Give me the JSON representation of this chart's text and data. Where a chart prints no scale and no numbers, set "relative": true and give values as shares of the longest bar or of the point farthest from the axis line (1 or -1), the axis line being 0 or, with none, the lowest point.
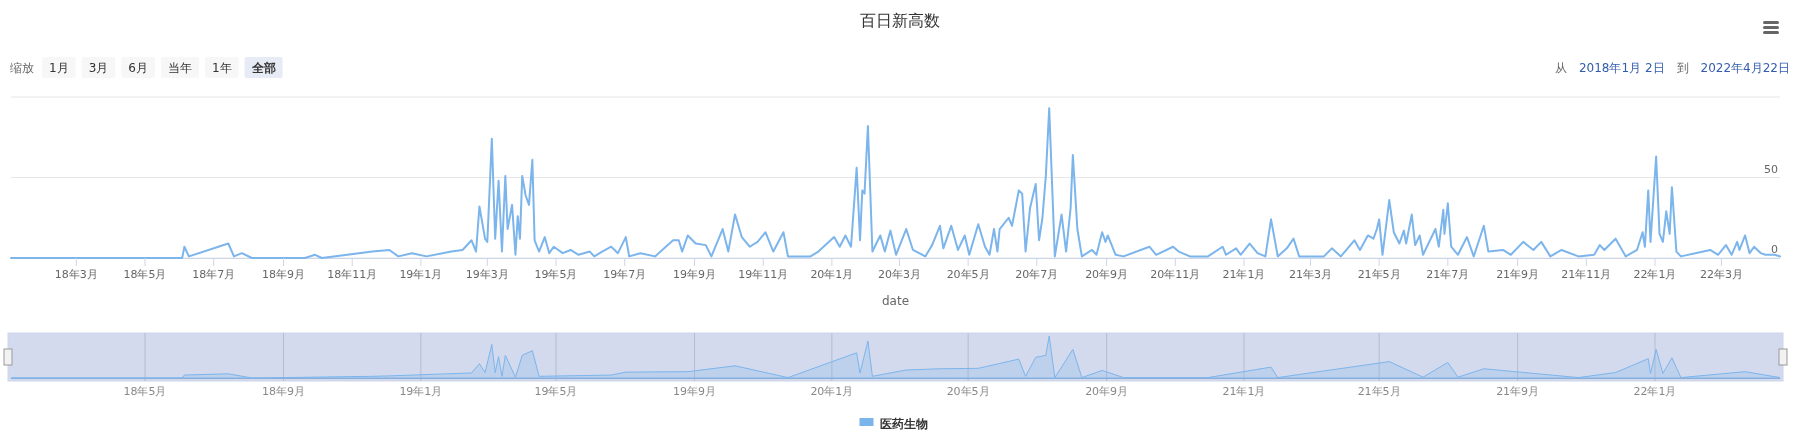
{
  "chart_data": [
    {
      "type": "line",
      "title": "百日新高数",
      "xlabel": "date",
      "annotations": [
        "缩放",
        "1月",
        "3月",
        "6月",
        "当年",
        "1年",
        "全部",
        "从",
        "2018年1月 2日",
        "到",
        "2022年4月22日"
      ],
      "xlim": [
        "2018-01-02",
        "2022-04-22"
      ],
      "xticks": [
        {
          "value": "2018-03-01",
          "label": "18年3月"
        },
        {
          "value": "2018-05-01",
          "label": "18年5月"
        },
        {
          "value": "2018-07-01",
          "label": "18年7月"
        },
        {
          "value": "2018-09-01",
          "label": "18年9月"
        },
        {
          "value": "2018-11-01",
          "label": "18年11月"
        },
        {
          "value": "2019-01-01",
          "label": "19年1月"
        },
        {
          "value": "2019-03-01",
          "label": "19年3月"
        },
        {
          "value": "2019-05-01",
          "label": "19年5月"
        },
        {
          "value": "2019-07-01",
          "label": "19年7月"
        },
        {
          "value": "2019-09-01",
          "label": "19年9月"
        },
        {
          "value": "2019-11-01",
          "label": "19年11月"
        },
        {
          "value": "2020-01-01",
          "label": "20年1月"
        },
        {
          "value": "2020-03-01",
          "label": "20年3月"
        },
        {
          "value": "2020-05-01",
          "label": "20年5月"
        },
        {
          "value": "2020-07-01",
          "label": "20年7月"
        },
        {
          "value": "2020-09-01",
          "label": "20年9月"
        },
        {
          "value": "2020-11-01",
          "label": "20年11月"
        },
        {
          "value": "2021-01-01",
          "label": "21年1月"
        },
        {
          "value": "2021-03-01",
          "label": "21年3月"
        },
        {
          "value": "2021-05-01",
          "label": "21年5月"
        },
        {
          "value": "2021-07-01",
          "label": "21年7月"
        },
        {
          "value": "2021-09-01",
          "label": "21年9月"
        },
        {
          "value": "2021-11-01",
          "label": "21年11月"
        },
        {
          "value": "2022-01-01",
          "label": "22年1月"
        },
        {
          "value": "2022-03-01",
          "label": "22年3月"
        }
      ],
      "ylim": [
        0,
        100
      ],
      "yticks": [
        0,
        50,
        {
          "value": 100,
          "label": null
        }
      ],
      "grid": "y",
      "legend": "bottom",
      "series": [
        {
          "name": "医药生物",
          "color": "#7cb5ec",
          "x": [
            "2018-01-02",
            "2018-06-03",
            "2018-06-05",
            "2018-06-09",
            "2018-07-14",
            "2018-07-19",
            "2018-07-26",
            "2018-08-04",
            "2018-09-20",
            "2018-09-29",
            "2018-10-05",
            "2018-11-19",
            "2018-12-04",
            "2018-12-12",
            "2018-12-24",
            "2019-01-06",
            "2019-01-28",
            "2019-02-07",
            "2019-02-15",
            "2019-02-19",
            "2019-02-22",
            "2019-02-27",
            "2019-03-01",
            "2019-03-05",
            "2019-03-08",
            "2019-03-11",
            "2019-03-14",
            "2019-03-17",
            "2019-03-19",
            "2019-03-23",
            "2019-03-26",
            "2019-03-28",
            "2019-03-30",
            "2019-04-01",
            "2019-04-04",
            "2019-04-07",
            "2019-04-10",
            "2019-04-12",
            "2019-04-16",
            "2019-04-21",
            "2019-04-25",
            "2019-04-29",
            "2019-05-07",
            "2019-05-14",
            "2019-05-21",
            "2019-05-31",
            "2019-06-04",
            "2019-06-11",
            "2019-06-19",
            "2019-06-25",
            "2019-07-02",
            "2019-07-05",
            "2019-07-15",
            "2019-07-28",
            "2019-08-13",
            "2019-08-18",
            "2019-08-21",
            "2019-08-26",
            "2019-09-02",
            "2019-09-11",
            "2019-09-16",
            "2019-09-26",
            "2019-10-01",
            "2019-10-07",
            "2019-10-13",
            "2019-10-20",
            "2019-10-27",
            "2019-11-03",
            "2019-11-10",
            "2019-11-19",
            "2019-11-23",
            "2019-12-13",
            "2019-12-20",
            "2020-01-03",
            "2020-01-08",
            "2020-01-13",
            "2020-01-18",
            "2020-01-23",
            "2020-01-26",
            "2020-01-28",
            "2020-01-30",
            "2020-02-02",
            "2020-02-06",
            "2020-02-13",
            "2020-02-17",
            "2020-02-22",
            "2020-02-27",
            "2020-03-07",
            "2020-03-13",
            "2020-03-24",
            "2020-03-30",
            "2020-04-06",
            "2020-04-09",
            "2020-04-16",
            "2020-04-22",
            "2020-04-28",
            "2020-05-02",
            "2020-05-10",
            "2020-05-16",
            "2020-05-20",
            "2020-05-24",
            "2020-05-27",
            "2020-05-29",
            "2020-06-06",
            "2020-06-09",
            "2020-06-15",
            "2020-06-18",
            "2020-06-21",
            "2020-06-25",
            "2020-06-30",
            "2020-07-03",
            "2020-07-06",
            "2020-07-09",
            "2020-07-12",
            "2020-07-17",
            "2020-07-23",
            "2020-07-27",
            "2020-07-31",
            "2020-08-02",
            "2020-08-06",
            "2020-08-10",
            "2020-08-19",
            "2020-08-23",
            "2020-08-28",
            "2020-08-31",
            "2020-09-02",
            "2020-09-09",
            "2020-09-16",
            "2020-10-09",
            "2020-10-15",
            "2020-10-30",
            "2020-11-04",
            "2020-11-14",
            "2020-11-30",
            "2020-12-13",
            "2020-12-16",
            "2020-12-25",
            "2020-12-29",
            "2021-01-06",
            "2021-01-13",
            "2021-01-20",
            "2021-01-25",
            "2021-01-31",
            "2021-02-08",
            "2021-02-14",
            "2021-02-19",
            "2021-03-13",
            "2021-03-20",
            "2021-03-28",
            "2021-04-09",
            "2021-04-14",
            "2021-04-21",
            "2021-04-26",
            "2021-04-29",
            "2021-05-01",
            "2021-05-04",
            "2021-05-10",
            "2021-05-14",
            "2021-05-19",
            "2021-05-23",
            "2021-05-25",
            "2021-05-30",
            "2021-06-02",
            "2021-06-06",
            "2021-06-09",
            "2021-06-20",
            "2021-06-23",
            "2021-06-27",
            "2021-06-28",
            "2021-07-01",
            "2021-07-04",
            "2021-07-10",
            "2021-07-18",
            "2021-07-24",
            "2021-08-02",
            "2021-08-06",
            "2021-08-19",
            "2021-08-26",
            "2021-09-06",
            "2021-09-15",
            "2021-09-22",
            "2021-09-30",
            "2021-10-10",
            "2021-10-25",
            "2021-11-08",
            "2021-11-13",
            "2021-11-17",
            "2021-11-27",
            "2021-12-06",
            "2021-12-16",
            "2021-12-21",
            "2021-12-23",
            "2021-12-26",
            "2021-12-28",
            "2022-01-02",
            "2022-01-05",
            "2022-01-08",
            "2022-01-11",
            "2022-01-14",
            "2022-01-16",
            "2022-01-20",
            "2022-01-24",
            "2022-02-19",
            "2022-02-26",
            "2022-03-05",
            "2022-03-10",
            "2022-03-15",
            "2022-03-17",
            "2022-03-22",
            "2022-03-26",
            "2022-03-30",
            "2022-04-05",
            "2022-04-09",
            "2022-04-17",
            "2022-04-22"
          ],
          "values": [
            0,
            0,
            7,
            1,
            9,
            1,
            3,
            0,
            0,
            2,
            0,
            4,
            5,
            1,
            3,
            1,
            4,
            5,
            11,
            4,
            32,
            12,
            10,
            74,
            12,
            48,
            4,
            51,
            18,
            33,
            2,
            26,
            12,
            51,
            39,
            33,
            61,
            11,
            4,
            13,
            3,
            7,
            3,
            5,
            2,
            4,
            1,
            4,
            7,
            3,
            13,
            1,
            3,
            1,
            11,
            11,
            4,
            14,
            9,
            8,
            1,
            18,
            4,
            27,
            13,
            7,
            10,
            16,
            4,
            16,
            1,
            1,
            4,
            13,
            7,
            14,
            7,
            56,
            11,
            42,
            40,
            82,
            4,
            14,
            4,
            17,
            2,
            18,
            5,
            1,
            8,
            20,
            6,
            20,
            5,
            14,
            2,
            21,
            7,
            2,
            18,
            4,
            18,
            25,
            20,
            42,
            40,
            4,
            31,
            46,
            11,
            25,
            51,
            93,
            1,
            27,
            4,
            31,
            64,
            18,
            1,
            5,
            2,
            16,
            10,
            14,
            2,
            1,
            7,
            2,
            7,
            4,
            1,
            1,
            7,
            2,
            6,
            2,
            9,
            3,
            1,
            24,
            1,
            6,
            12,
            1,
            1,
            6,
            1,
            11,
            5,
            14,
            12,
            18,
            24,
            2,
            36,
            16,
            9,
            17,
            9,
            27,
            8,
            14,
            2,
            18,
            7,
            30,
            15,
            34,
            7,
            2,
            13,
            1,
            20,
            4,
            5,
            2,
            10,
            5,
            10,
            1,
            5,
            1,
            2,
            8,
            5,
            12,
            1,
            5,
            16,
            7,
            42,
            10,
            63,
            15,
            10,
            29,
            15,
            44,
            4,
            1,
            5,
            2,
            8,
            2,
            10,
            5,
            14,
            3,
            7,
            3,
            2,
            2,
            1
          ]
        }
      ]
    },
    {
      "type": "area",
      "relative": true,
      "grid": "x",
      "tick_labels": "x",
      "xlim": [
        "2018-01-02",
        "2022-04-22"
      ],
      "xticks": [
        {
          "value": "2018-05-01",
          "label": "18年5月"
        },
        {
          "value": "2018-09-01",
          "label": "18年9月"
        },
        {
          "value": "2019-01-01",
          "label": "19年1月"
        },
        {
          "value": "2019-05-01",
          "label": "19年5月"
        },
        {
          "value": "2019-09-01",
          "label": "19年9月"
        },
        {
          "value": "2020-01-01",
          "label": "20年1月"
        },
        {
          "value": "2020-05-01",
          "label": "20年5月"
        },
        {
          "value": "2020-09-01",
          "label": "20年9月"
        },
        {
          "value": "2021-01-01",
          "label": "21年1月"
        },
        {
          "value": "2021-05-01",
          "label": "21年5月"
        },
        {
          "value": "2021-09-01",
          "label": "21年9月"
        },
        {
          "value": "2022-01-01",
          "label": "22年1月"
        }
      ],
      "series": [
        {
          "color": "#7cb5ec",
          "x": [
            "2018-01-02",
            "2018-06-03",
            "2018-06-05",
            "2018-07-14",
            "2018-08-04",
            "2018-11-19",
            "2018-12-04",
            "2019-02-15",
            "2019-02-22",
            "2019-02-27",
            "2019-03-05",
            "2019-03-08",
            "2019-03-11",
            "2019-03-14",
            "2019-03-17",
            "2019-03-26",
            "2019-04-01",
            "2019-04-10",
            "2019-04-16",
            "2019-06-19",
            "2019-07-02",
            "2019-08-26",
            "2019-10-07",
            "2019-11-23",
            "2020-01-23",
            "2020-01-26",
            "2020-02-02",
            "2020-02-06",
            "2020-03-07",
            "2020-04-06",
            "2020-05-10",
            "2020-06-15",
            "2020-06-21",
            "2020-06-30",
            "2020-07-09",
            "2020-07-12",
            "2020-07-17",
            "2020-08-02",
            "2020-08-10",
            "2020-08-28",
            "2020-09-16",
            "2020-11-30",
            "2021-01-25",
            "2021-01-31",
            "2021-05-10",
            "2021-06-09",
            "2021-07-01",
            "2021-07-10",
            "2021-08-02",
            "2021-10-25",
            "2021-11-27",
            "2021-12-26",
            "2021-12-28",
            "2022-01-02",
            "2022-01-08",
            "2022-01-16",
            "2022-01-24",
            "2022-03-22",
            "2022-04-22"
          ],
          "values": [
            0,
            0,
            0.07,
            0.1,
            0,
            0.04,
            0.05,
            0.12,
            0.34,
            0.13,
            0.8,
            0.13,
            0.51,
            0.04,
            0.54,
            0.02,
            0.54,
            0.65,
            0.04,
            0.07,
            0.14,
            0.15,
            0.29,
            0.01,
            0.6,
            0.12,
            0.88,
            0.04,
            0.19,
            0.22,
            0.23,
            0.45,
            0.04,
            0.49,
            0.54,
            1,
            0.01,
            0.68,
            0.01,
            0.18,
            0.01,
            0.01,
            0.26,
            0.01,
            0.39,
            0.02,
            0.37,
            0.02,
            0.22,
            0.01,
            0.13,
            0.46,
            0.11,
            0.68,
            0.11,
            0.48,
            0.01,
            0.15,
            0.01
          ]
        }
      ]
    }
  ]
}
